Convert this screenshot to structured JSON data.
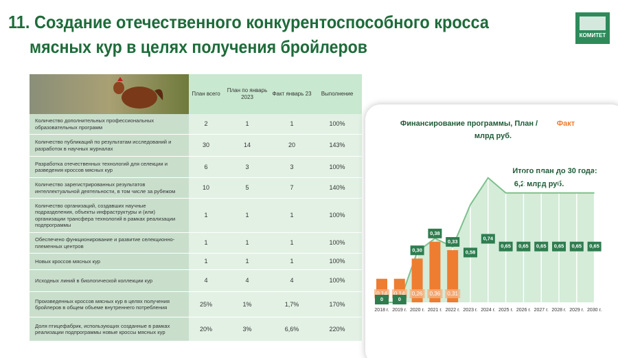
{
  "header": {
    "title_line1": "11. Создание отечественного конкурентоспособного кросса",
    "title_line2": "мясных кур в целях получения бройлеров",
    "logo": "КОМИТЕТ"
  },
  "table": {
    "columns": [
      "План всего",
      "План по январь 2023",
      "Факт январь 23",
      "Выполнение"
    ],
    "rows": [
      [
        "Количество дополнительных профессиональных образовательных программ",
        "2",
        "1",
        "1",
        "100%"
      ],
      [
        "Количество публикаций по результатам исследований и разработок в научных журналах",
        "30",
        "14",
        "20",
        "143%"
      ],
      [
        "Разработка отечественных технологий для селекции и разведения кроссов мясных кур",
        "6",
        "3",
        "3",
        "100%"
      ],
      [
        "Количество зарегистрированных результатов интеллектуальной деятельности, в том числе за рубежом",
        "10",
        "5",
        "7",
        "140%"
      ],
      [
        "Количество организаций, создавших научные подразделения, объекты инфраструктуры и (или) организации трансфера технологий в рамках реализации подпрограммы",
        "1",
        "1",
        "1",
        "100%"
      ],
      [
        "Обеспечено функционирование и развитие селекционно-племенных центров",
        "1",
        "1",
        "1",
        "100%"
      ],
      [
        "Новых кроссов мясных кур",
        "1",
        "1",
        "1",
        "100%"
      ],
      [
        "Исходных линий в биологической коллекции кур",
        "4",
        "4",
        "4",
        "100%"
      ],
      [
        "Произведенных кроссов мясных кур в целях получения бройлеров в общем объеме внутреннего потребления",
        "25%",
        "1%",
        "1,7%",
        "170%"
      ],
      [
        "Доля птицефабрик, использующих созданные в рамках реализации подпрограммы новые кроссы мясных кур",
        "20%",
        "3%",
        "6,6%",
        "220%"
      ]
    ]
  },
  "chart_data": {
    "type": "bar-area",
    "title_parts": [
      "Финансирование программы, План /",
      "Факт",
      "млрд руб."
    ],
    "annotations": [
      "Итого план до 30 года:",
      "6,2 млрд руб."
    ],
    "categories": [
      "2018 г.",
      "2019 г.",
      "2020 г.",
      "2021 г.",
      "2022 г.",
      "2023 г.",
      "2024 г.",
      "2025 г.",
      "2026 г.",
      "2027 г.",
      "2028 г.",
      "2029 г.",
      "2030 г."
    ],
    "series": [
      {
        "name": "План",
        "color": "#2e7d4f",
        "values": [
          0,
          0,
          0.3,
          0.38,
          0.33,
          0.58,
          0.74,
          0.65,
          0.65,
          0.65,
          0.65,
          0.65,
          0.65
        ],
        "value_labels": [
          "0",
          "0",
          "0,30",
          "0,38",
          "0,33",
          "0,58",
          "0,74",
          "0,65",
          "0,65",
          "0,65",
          "0,65",
          "0,65",
          "0,65"
        ]
      },
      {
        "name": "Факт",
        "color": "#ee7d31",
        "values": [
          0.14,
          0.14,
          0.26,
          0.36,
          0.31,
          null,
          null,
          null,
          null,
          null,
          null,
          null,
          null
        ],
        "value_labels": [
          "0,14",
          "0,14",
          "0,26",
          "0,36",
          "0,31",
          null,
          null,
          null,
          null,
          null,
          null,
          null,
          null
        ]
      }
    ]
  }
}
